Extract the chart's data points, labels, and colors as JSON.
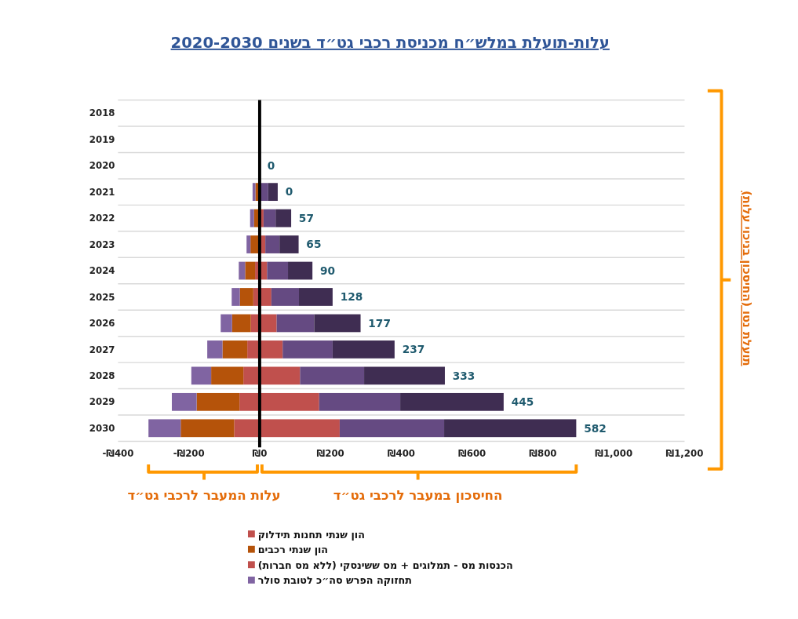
{
  "chart_data": {
    "type": "bar",
    "orientation": "horizontal",
    "stacked": true,
    "title": "עלות-תועלת במלש״ח מכניסת רכבי גט״ד בשנים 2020-2030",
    "categories": [
      "2018",
      "2019",
      "2020",
      "2021",
      "2022",
      "2023",
      "2024",
      "2025",
      "2026",
      "2027",
      "2028",
      "2029",
      "2030"
    ],
    "series": [
      {
        "name": "הון שנתי תחנות תידלוק",
        "color": "#c0504d",
        "values": [
          null,
          null,
          0,
          null,
          null,
          null,
          -13,
          -18,
          -25,
          -35,
          -46,
          -57,
          -72
        ]
      },
      {
        "name": "הון שנתי רכבים",
        "color": "#b5530a",
        "values": [
          null,
          null,
          0,
          -12,
          -16,
          -26,
          -28,
          -38,
          -53,
          -70,
          -91,
          -121,
          -151
        ]
      },
      {
        "name": "הכנסות מס - תמלוגים + מס ששינסקי (ללא מס חברות)",
        "color": "#c0504d",
        "values": [
          null,
          null,
          0,
          null,
          11,
          16,
          21,
          33,
          48,
          65,
          114,
          168,
          226
        ]
      },
      {
        "name": "תחזוקה הפרש סה״כ  לטובת סולר",
        "color": "#8064a2",
        "values": [
          null,
          null,
          0,
          -8,
          -11,
          -11,
          -18,
          -23,
          -32,
          -43,
          -56,
          -70,
          -91
        ]
      },
      {
        "color": "#654a82",
        "values": [
          null,
          null,
          0,
          24,
          34,
          40,
          59,
          78,
          106,
          141,
          181,
          229,
          295
        ]
      },
      {
        "color": "#3f2d52",
        "values": [
          null,
          null,
          0,
          27,
          44,
          54,
          69,
          95,
          131,
          175,
          228,
          292,
          373
        ]
      }
    ],
    "xlim": [
      -400,
      1200
    ],
    "xticks": [
      {
        "value": -400,
        "label": "-₪400"
      },
      {
        "value": -200,
        "label": "-₪200"
      },
      {
        "value": 0,
        "label": "₪0"
      },
      {
        "value": 200,
        "label": "₪200"
      },
      {
        "value": 400,
        "label": "₪400"
      },
      {
        "value": 600,
        "label": "₪600"
      },
      {
        "value": 800,
        "label": "₪800"
      },
      {
        "value": 1000,
        "label": "₪1,000"
      },
      {
        "value": 1200,
        "label": "₪1,200"
      }
    ],
    "grid": "y",
    "ref_lines": [
      {
        "axis": "x",
        "value": 0,
        "color": "#000000"
      }
    ],
    "annotations": [
      "עלות המעבר לרכבי גט״ד",
      "החיסכון במעבר לרכבי גט״ד",
      "תועלת נטו (החיסכון בניכוי עלות)",
      {
        "text": "0",
        "x": 0,
        "y": "2020"
      },
      {
        "text": "0",
        "x": 51,
        "y": "2021"
      },
      {
        "text": "57",
        "x": 89,
        "y": "2022"
      },
      {
        "text": "65",
        "x": 110,
        "y": "2023"
      },
      {
        "text": "90",
        "x": 149,
        "y": "2024"
      },
      {
        "text": "128",
        "x": 206,
        "y": "2025"
      },
      {
        "text": "177",
        "x": 285,
        "y": "2026"
      },
      {
        "text": "237",
        "x": 381,
        "y": "2027"
      },
      {
        "text": "333",
        "x": 523,
        "y": "2028"
      },
      {
        "text": "445",
        "x": 689,
        "y": "2029"
      },
      {
        "text": "582",
        "x": 894,
        "y": "2030"
      }
    ],
    "legend": "bottom"
  }
}
